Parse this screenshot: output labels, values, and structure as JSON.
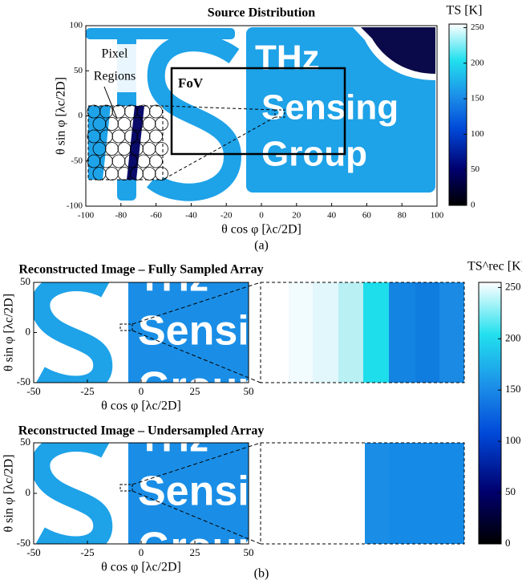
{
  "figure_a": {
    "label": "(a)",
    "title": "Source Distribution",
    "xlabel": "θ cos φ [λc/2D]",
    "ylabel": "θ sin φ [λc/2D]",
    "xlim": [
      -100,
      100
    ],
    "ylim": [
      -100,
      100
    ],
    "xticks": [
      -100,
      -80,
      -60,
      -40,
      -20,
      0,
      20,
      40,
      60,
      80,
      100
    ],
    "yticks": [
      -100,
      -50,
      0,
      50,
      100
    ],
    "image_text": [
      "THz",
      "Sensing",
      "Group"
    ],
    "annotations": {
      "pixel_regions": [
        "Pixel",
        "Regions"
      ],
      "fov": "FoV"
    },
    "colorbar": {
      "label": "TS [K]",
      "lim": [
        0,
        255
      ],
      "ticks": [
        0,
        50,
        100,
        150,
        200,
        250
      ]
    }
  },
  "figure_b": {
    "label": "(b)",
    "panels": [
      {
        "title": "Reconstructed Image – Fully Sampled Array",
        "xlabel": "θ cos φ [λc/2D]",
        "ylabel": "θ sin φ [λc/2D]",
        "xlim": [
          -50,
          50
        ],
        "ylim": [
          -50,
          50
        ],
        "xticks": [
          -50,
          -25,
          0,
          25,
          50
        ],
        "yticks": [
          -50,
          0,
          50
        ]
      },
      {
        "title": "Reconstructed Image – Undersampled Array",
        "xlabel": "θ cos φ [λc/2D]",
        "ylabel": "θ sin φ [λc/2D]",
        "xlim": [
          -50,
          50
        ],
        "ylim": [
          -50,
          50
        ],
        "xticks": [
          -50,
          -25,
          0,
          25,
          50
        ],
        "yticks": [
          -50,
          0,
          50
        ]
      }
    ],
    "colorbar": {
      "label": "TS^rec [K]",
      "lim": [
        0,
        255
      ],
      "ticks": [
        0,
        50,
        100,
        150,
        200,
        250
      ]
    }
  }
}
